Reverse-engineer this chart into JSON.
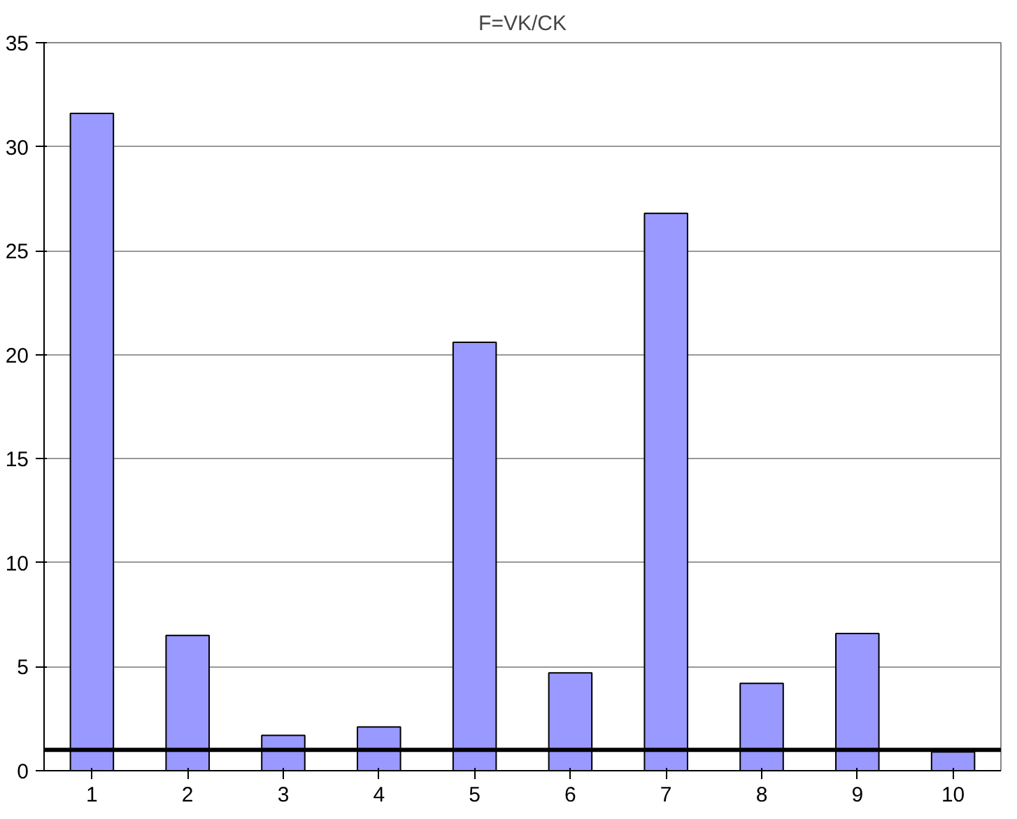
{
  "chart_data": {
    "type": "bar",
    "title": "F=VK/CK",
    "categories": [
      "1",
      "2",
      "3",
      "4",
      "5",
      "6",
      "7",
      "8",
      "9",
      "10"
    ],
    "values": [
      31.6,
      6.5,
      1.7,
      2.1,
      20.6,
      4.7,
      26.8,
      4.2,
      6.6,
      0.9
    ],
    "color": "#9999ff",
    "ylim": [
      0,
      35
    ],
    "yticks": [
      0,
      5,
      10,
      15,
      20,
      25,
      30,
      35
    ],
    "grid": "y",
    "ref_lines": [
      {
        "axis": "y",
        "value": 1,
        "color": "#000000"
      }
    ]
  }
}
